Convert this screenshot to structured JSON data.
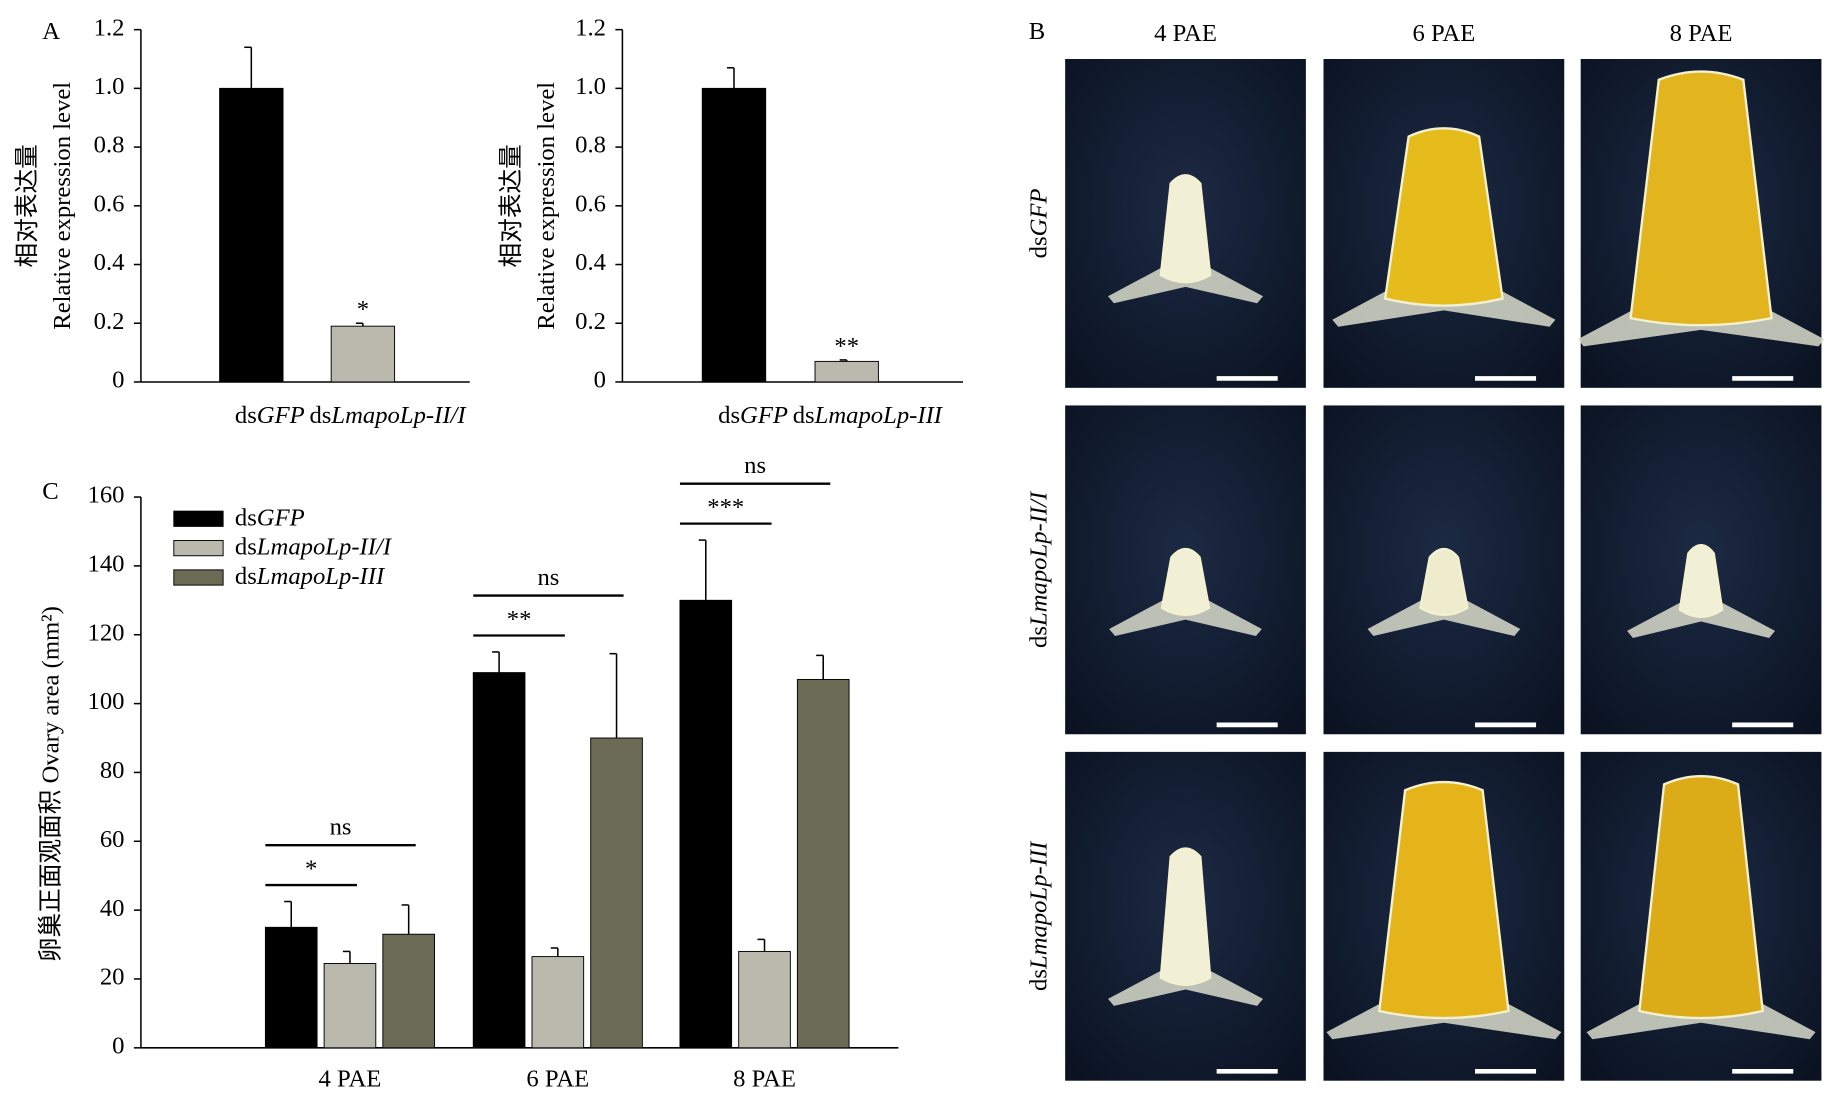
{
  "chart_data": [
    {
      "type": "bar",
      "panel": "A",
      "ylabel": [
        "相对表达量",
        "Relative expression level"
      ],
      "categories": [
        "dsGFP",
        "dsLmapoLp-II/I"
      ],
      "values": [
        1.0,
        0.19
      ],
      "errors": [
        0.14,
        0.01
      ],
      "colors": [
        "#000000",
        "#b9b9ad"
      ],
      "significance": [
        null,
        "*"
      ],
      "ylim": [
        0,
        1.2
      ],
      "yticks": [
        0,
        0.2,
        0.4,
        0.6,
        0.8,
        {
          "value": 1,
          "label": "1.0"
        },
        1.2
      ]
    },
    {
      "type": "bar",
      "ylabel": [
        "相对表达量",
        "Relative expression level"
      ],
      "categories": [
        "dsGFP",
        "dsLmapoLp-III"
      ],
      "values": [
        1.0,
        0.07
      ],
      "errors": [
        0.07,
        0.005
      ],
      "colors": [
        "#000000",
        "#b9b9ad"
      ],
      "significance": [
        null,
        "**"
      ],
      "ylim": [
        0,
        1.2
      ],
      "yticks": [
        0,
        0.2,
        0.4,
        0.6,
        0.8,
        {
          "value": 1,
          "label": "1.0"
        },
        1.2
      ]
    },
    {
      "type": "bar",
      "panel": "C",
      "ylabel": "卵巢正面观面积 Ovary area (mm²)",
      "categories": [
        "4 PAE",
        "6 PAE",
        "8 PAE"
      ],
      "series": [
        {
          "name": "dsGFP",
          "color": "#000000",
          "values": [
            35,
            109,
            130
          ],
          "errors": [
            7.5,
            6,
            17.5
          ]
        },
        {
          "name": "dsLmapoLp-II/I",
          "color": "#b9b9ad",
          "values": [
            24.5,
            26.5,
            28
          ],
          "errors": [
            3.5,
            2.5,
            3.5
          ]
        },
        {
          "name": "dsLmapoLp-III",
          "color": "#6b6b55",
          "values": [
            33,
            90,
            107
          ],
          "errors": [
            8.5,
            24.5,
            7
          ]
        }
      ],
      "significance": [
        [
          "*",
          "ns"
        ],
        [
          "**",
          "ns"
        ],
        [
          "***",
          "ns"
        ]
      ],
      "ylim": [
        0,
        160
      ],
      "yticks": [
        0,
        20,
        40,
        60,
        80,
        100,
        120,
        140,
        160
      ],
      "legend": "upper left"
    }
  ],
  "panel_b": {
    "label": "B",
    "columns": [
      "4 PAE",
      "6 PAE",
      "8 PAE"
    ],
    "rows": [
      "dsGFP",
      "dsLmapoLp-II/I",
      "dsLmapoLp-III"
    ]
  }
}
